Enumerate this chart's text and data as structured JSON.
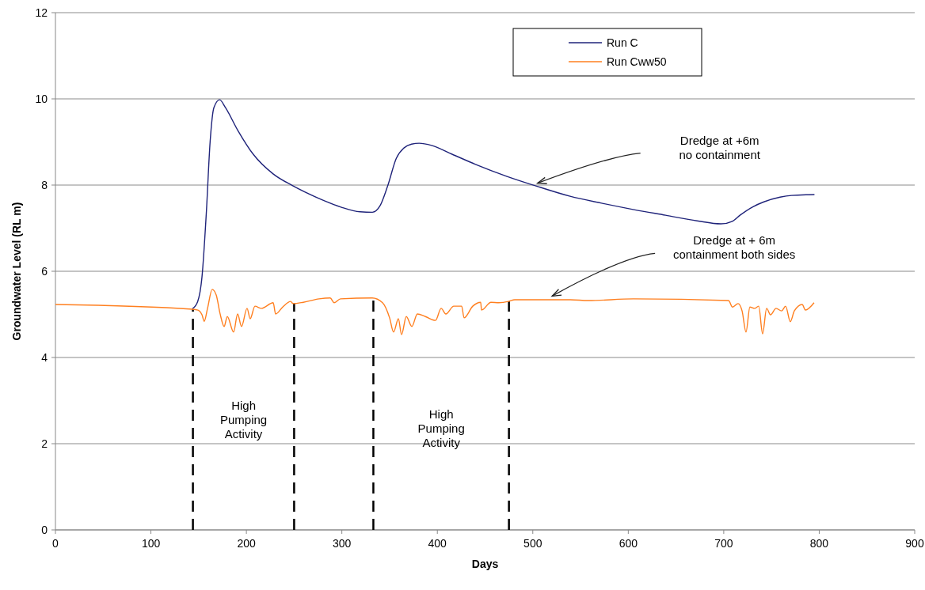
{
  "chart_data": {
    "type": "line",
    "xlabel": "Days",
    "ylabel": "Groundwater Level (RL m)",
    "xlim": [
      0,
      900
    ],
    "xticks": [
      0,
      100,
      200,
      300,
      400,
      500,
      600,
      700,
      800,
      900
    ],
    "ylim": [
      0,
      12
    ],
    "yticks": [
      0,
      2,
      4,
      6,
      8,
      10,
      12
    ],
    "grid": "y",
    "legend": "top right",
    "line_style": "solid",
    "marker": "none",
    "series": [
      {
        "name": "Run C",
        "color": "#1f237a",
        "x": [
          143.5,
          149,
          153.5,
          158,
          162,
          166,
          172,
          178,
          191,
          207,
          228,
          249,
          274,
          299,
          319,
          332,
          340,
          348,
          357,
          365,
          373,
          381,
          394,
          415,
          440,
          473,
          506,
          539,
          572,
          606,
          639,
          672,
          697,
          709,
          717,
          730,
          742,
          759,
          771,
          795
        ],
        "values": [
          5.13,
          5.3,
          5.87,
          7.34,
          9.0,
          9.8,
          9.98,
          9.8,
          9.27,
          8.72,
          8.26,
          7.98,
          7.71,
          7.49,
          7.38,
          7.37,
          7.52,
          7.98,
          8.62,
          8.86,
          8.95,
          8.97,
          8.92,
          8.72,
          8.48,
          8.2,
          7.96,
          7.74,
          7.58,
          7.43,
          7.3,
          7.17,
          7.1,
          7.16,
          7.3,
          7.49,
          7.61,
          7.72,
          7.76,
          7.78
        ]
      },
      {
        "name": "Run Cww50",
        "color": "#ff7f1f",
        "x": [
          0,
          143.5,
          149.3,
          153.5,
          155.9,
          159.3,
          164.2,
          168.4,
          172.5,
          176.7,
          180,
          186.6,
          190.8,
          194.9,
          200.7,
          204,
          209,
          215.7,
          228.1,
          230.6,
          238,
          246.4,
          248.8,
          259.6,
          276.2,
          287.8,
          292,
          298.6,
          331.8,
          342.6,
          350,
          354.2,
          359.2,
          362.5,
          367.5,
          373.3,
          379.1,
          387.4,
          398.1,
          404,
          408.9,
          417.2,
          425.5,
          428,
          437.1,
          445.4,
          446.3,
          456.2,
          464.5,
          474.5,
          481.1,
          539.2,
          558.2,
          605.5,
          705,
          709.2,
          715,
          719.2,
          723.3,
          727.4,
          732.4,
          736.6,
          740.7,
          744.9,
          749,
          754.8,
          760.6,
          764.8,
          769.7,
          773.9,
          782.2,
          785.5,
          794.6
        ],
        "values": [
          5.23,
          5.12,
          5.1,
          4.99,
          4.84,
          5.14,
          5.58,
          5.45,
          5.01,
          4.72,
          4.95,
          4.59,
          5.01,
          4.72,
          5.14,
          4.9,
          5.19,
          5.14,
          5.27,
          5.01,
          5.17,
          5.3,
          5.25,
          5.28,
          5.36,
          5.38,
          5.27,
          5.36,
          5.38,
          5.27,
          4.92,
          4.59,
          4.9,
          4.53,
          4.95,
          4.72,
          5.01,
          4.95,
          4.86,
          5.14,
          5.01,
          5.19,
          5.19,
          4.92,
          5.19,
          5.28,
          5.1,
          5.28,
          5.27,
          5.3,
          5.34,
          5.34,
          5.32,
          5.36,
          5.32,
          5.17,
          5.25,
          5.08,
          4.59,
          5.17,
          5.14,
          5.19,
          4.55,
          5.14,
          4.99,
          5.14,
          5.08,
          5.19,
          4.83,
          5.08,
          5.23,
          5.1,
          5.27
        ]
      }
    ],
    "ref_lines": [
      {
        "axis": "x",
        "value": 144,
        "line_style": "dashed",
        "color": "#000000"
      },
      {
        "axis": "x",
        "value": 250,
        "line_style": "dashed",
        "color": "#000000"
      },
      {
        "axis": "x",
        "value": 333,
        "line_style": "dashed",
        "color": "#000000"
      },
      {
        "axis": "x",
        "value": 475,
        "line_style": "dashed",
        "color": "#000000"
      }
    ],
    "annotations": [
      "High Pumping Activity",
      "High Pumping Activity",
      "Dredge at +6m no containment",
      "Dredge at + 6m containment both sides"
    ]
  }
}
